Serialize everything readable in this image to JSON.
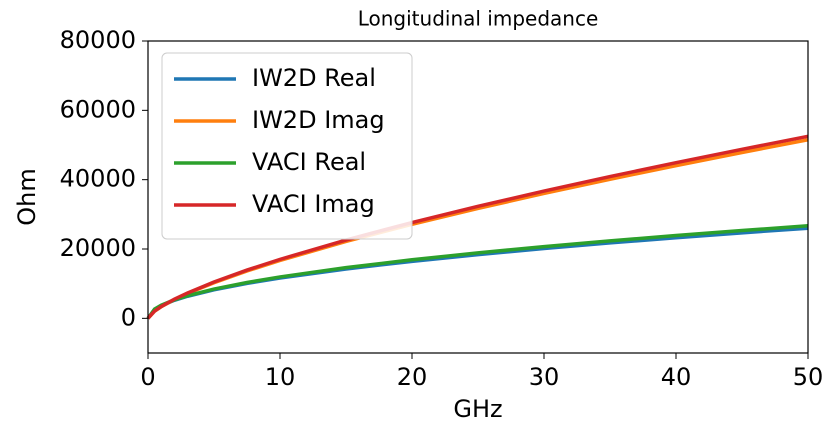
{
  "chart_data": {
    "type": "line",
    "title": "Longitudinal impedance",
    "xlabel": "GHz",
    "ylabel": "Ohm",
    "x": [
      0,
      0.5,
      1,
      2,
      3,
      5,
      7.5,
      10,
      15,
      20,
      25,
      30,
      35,
      40,
      45,
      50
    ],
    "series": [
      {
        "name": "IW2D Real",
        "color": "#1f77b4",
        "values": [
          0,
          2600,
          3677,
          5200,
          6369,
          8222,
          10070,
          11628,
          14241,
          16444,
          18385,
          20140,
          21753,
          23255,
          24666,
          26000
        ]
      },
      {
        "name": "IW2D Imag",
        "color": "#ff7f0e",
        "values": [
          0,
          2051,
          3337,
          5408,
          7184,
          10274,
          13663,
          16691,
          22171,
          27120,
          31703,
          36019,
          40124,
          44053,
          47838,
          51500
        ]
      },
      {
        "name": "VACI Real",
        "color": "#2ca02c",
        "values": [
          0,
          2670,
          3776,
          5340,
          6541,
          8444,
          10342,
          11942,
          14625,
          16888,
          18881,
          20684,
          22340,
          23883,
          25332,
          26700
        ]
      },
      {
        "name": "VACI Imag",
        "color": "#d62728",
        "values": [
          0,
          2090,
          3400,
          5511,
          7321,
          10469,
          13923,
          17008,
          22592,
          27635,
          32305,
          36703,
          40886,
          44890,
          48747,
          52500
        ]
      }
    ],
    "xlim": [
      0,
      50
    ],
    "xticks": [
      0,
      10,
      20,
      30,
      40,
      50
    ],
    "ylim": [
      -10000,
      80000
    ],
    "yticks": [
      0,
      20000,
      40000,
      60000,
      80000
    ],
    "grid": false,
    "legend": "upper left"
  }
}
